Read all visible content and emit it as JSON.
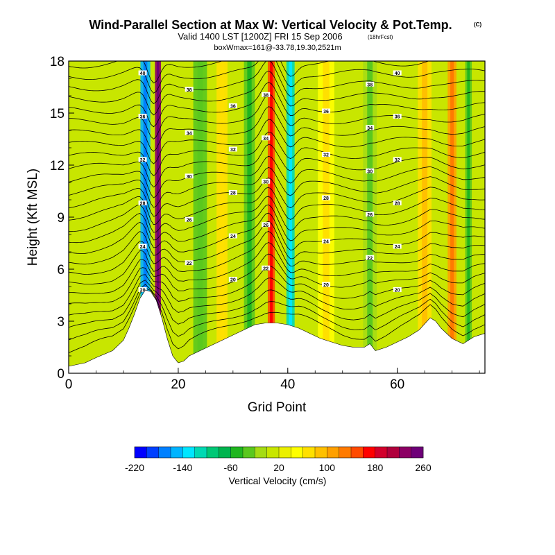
{
  "title": {
    "main": "Wind-Parallel Section at Max W: Vertical Velocity & Pot.Temp.",
    "main_unit": "(C)",
    "valid": "Valid 1400 LST [1200Z] FRI 15 Sep 2006",
    "forecast": "(18hrFcst)",
    "boxwmax": "boxWmax=161@-33.78,19.30,2521m"
  },
  "chart_data": {
    "type": "heatmap",
    "title": "Wind-Parallel Section at Max W: Vertical Velocity & Pot.Temp.",
    "xlabel": "Grid Point",
    "ylabel": "Height (Kft MSL)",
    "xlim": [
      0,
      76
    ],
    "ylim": [
      0,
      18
    ],
    "x_ticks": [
      "0",
      "20",
      "40",
      "60"
    ],
    "x_tick_values": [
      0,
      20,
      40,
      60
    ],
    "y_ticks": [
      "0",
      "3",
      "6",
      "9",
      "12",
      "15",
      "18"
    ],
    "y_tick_values": [
      0,
      3,
      6,
      9,
      12,
      15,
      18
    ],
    "terrain": {
      "x": [
        0,
        3,
        5,
        8,
        10,
        11,
        12,
        13,
        14,
        15,
        16,
        17,
        18,
        19,
        20,
        21,
        22,
        24,
        26,
        28,
        30,
        32,
        34,
        36,
        38,
        40,
        42,
        44,
        46,
        48,
        50,
        52,
        54,
        55,
        56,
        58,
        60,
        62,
        64,
        66,
        67,
        68,
        70,
        72,
        74,
        76
      ],
      "height_kft": [
        0.4,
        0.6,
        0.9,
        1.3,
        1.9,
        2.6,
        3.4,
        4.3,
        4.8,
        4.7,
        4.2,
        3.2,
        2.0,
        1.0,
        0.6,
        0.7,
        1.0,
        1.3,
        1.6,
        1.9,
        2.2,
        2.5,
        2.8,
        2.9,
        2.9,
        2.8,
        2.6,
        2.3,
        2.0,
        1.8,
        1.6,
        1.5,
        1.5,
        1.7,
        1.3,
        1.5,
        1.8,
        2.1,
        2.5,
        3.2,
        3.0,
        2.6,
        2.0,
        1.7,
        2.1,
        2.3
      ]
    },
    "velocity_bands": [
      {
        "x_center": 14,
        "width": 1.8,
        "value": -150
      },
      {
        "x_center": 16.3,
        "width": 1.1,
        "value": 220
      },
      {
        "x_center": 24,
        "width": 2.5,
        "value": -30
      },
      {
        "x_center": 28,
        "width": 2.0,
        "value": 60
      },
      {
        "x_center": 33,
        "width": 2.0,
        "value": -40
      },
      {
        "x_center": 37,
        "width": 1.3,
        "value": 140
      },
      {
        "x_center": 40.5,
        "width": 1.5,
        "value": -110
      },
      {
        "x_center": 47,
        "width": 3.0,
        "value": 50
      },
      {
        "x_center": 55,
        "width": 2.5,
        "value": -20
      },
      {
        "x_center": 65,
        "width": 2.5,
        "value": 70
      },
      {
        "x_center": 70,
        "width": 1.6,
        "value": 110
      },
      {
        "x_center": 73,
        "width": 1.2,
        "value": -40
      }
    ],
    "theta_contours": {
      "values": [
        20,
        22,
        24,
        26,
        28,
        30,
        32,
        34,
        36,
        38,
        40
      ],
      "labels": [
        "20",
        "22",
        "24",
        "26",
        "28",
        "30",
        "32",
        "34",
        "36",
        "38",
        "40"
      ]
    },
    "colorbar": {
      "label": "Vertical Velocity (cm/s)",
      "min": -220,
      "max": 260,
      "step": 20,
      "tick_values": [
        -220,
        -140,
        -60,
        20,
        100,
        180,
        260
      ],
      "tick_labels": [
        "-220",
        "-140",
        "-60",
        "20",
        "100",
        "180",
        "260"
      ],
      "colors": [
        "#0000ff",
        "#0040ff",
        "#0080ff",
        "#00b4ff",
        "#00e6ff",
        "#00d9b3",
        "#00c876",
        "#00b44e",
        "#1fb61f",
        "#5ac81e",
        "#a5dc14",
        "#c8e600",
        "#ebf000",
        "#ffff00",
        "#ffe000",
        "#ffc000",
        "#ffa000",
        "#ff7a00",
        "#ff4a00",
        "#ff0000",
        "#d2002c",
        "#b0003c",
        "#8c0064",
        "#6e0078"
      ]
    }
  }
}
